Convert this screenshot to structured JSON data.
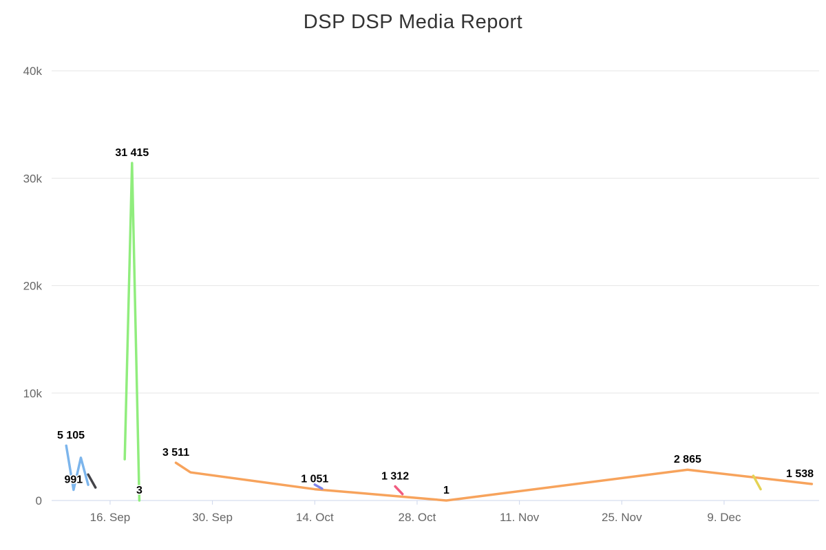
{
  "chart_data": {
    "type": "line",
    "title": "DSP DSP Media Report",
    "colors": {
      "background": "#ffffff",
      "title": "#333333",
      "axis_label": "#666666",
      "grid": "#e6e6e6",
      "axis_line": "#ccd6eb",
      "data_label": "#000000"
    },
    "legend_position": "none",
    "grid": "horizontal",
    "y_axis": {
      "min": 0,
      "max": 40000,
      "ticks": [
        {
          "value": 0,
          "label": "0"
        },
        {
          "value": 10000,
          "label": "10k"
        },
        {
          "value": 20000,
          "label": "20k"
        },
        {
          "value": 30000,
          "label": "30k"
        },
        {
          "value": 40000,
          "label": "40k"
        }
      ]
    },
    "x_axis": {
      "type": "datetime",
      "range": {
        "start": "2024-09-08",
        "end": "2024-12-22"
      },
      "ticks": [
        {
          "date": "2024-09-16",
          "label": "16. Sep"
        },
        {
          "date": "2024-09-30",
          "label": "30. Sep"
        },
        {
          "date": "2024-10-14",
          "label": "14. Oct"
        },
        {
          "date": "2024-10-28",
          "label": "28. Oct"
        },
        {
          "date": "2024-11-11",
          "label": "11. Nov"
        },
        {
          "date": "2024-11-25",
          "label": "25. Nov"
        },
        {
          "date": "2024-12-09",
          "label": "9. Dec"
        }
      ]
    },
    "series": [
      {
        "id": "series-blue",
        "color": "#7cb5ec",
        "points": [
          {
            "date": "2024-09-10",
            "value": 5105,
            "label": "5 105"
          },
          {
            "date": "2024-09-11",
            "value": 991,
            "label": "991"
          },
          {
            "date": "2024-09-12",
            "value": 3980
          },
          {
            "date": "2024-09-13",
            "value": 1460
          }
        ]
      },
      {
        "id": "series-black",
        "color": "#434348",
        "points": [
          {
            "date": "2024-09-13",
            "value": 2420
          },
          {
            "date": "2024-09-14",
            "value": 1210
          }
        ]
      },
      {
        "id": "series-green",
        "color": "#90ed7d",
        "points": [
          {
            "date": "2024-09-18",
            "value": 3840
          },
          {
            "date": "2024-09-19",
            "value": 31415,
            "label": "31 415"
          },
          {
            "date": "2024-09-20",
            "value": 3,
            "label": "3"
          }
        ]
      },
      {
        "id": "series-orange",
        "color": "#f7a35c",
        "points": [
          {
            "date": "2024-09-25",
            "value": 3511,
            "label": "3 511"
          },
          {
            "date": "2024-09-27",
            "value": 2620
          },
          {
            "date": "2024-10-14",
            "value": 1051,
            "label": "1 051"
          },
          {
            "date": "2024-11-01",
            "value": 1,
            "label": "1"
          },
          {
            "date": "2024-12-04",
            "value": 2865,
            "label": "2 865"
          },
          {
            "date": "2024-12-21",
            "value": 1538,
            "label": "1 538"
          }
        ]
      },
      {
        "id": "series-purple",
        "color": "#8085e9",
        "points": [
          {
            "date": "2024-10-14",
            "value": 1480
          },
          {
            "date": "2024-10-15",
            "value": 1100
          }
        ]
      },
      {
        "id": "series-pink",
        "color": "#f15c80",
        "points": [
          {
            "date": "2024-10-25",
            "value": 1312,
            "label": "1 312"
          },
          {
            "date": "2024-10-26",
            "value": 600
          }
        ]
      },
      {
        "id": "series-yellow",
        "color": "#e4d354",
        "points": [
          {
            "date": "2024-12-13",
            "value": 2300
          },
          {
            "date": "2024-12-14",
            "value": 1050
          }
        ]
      }
    ]
  }
}
